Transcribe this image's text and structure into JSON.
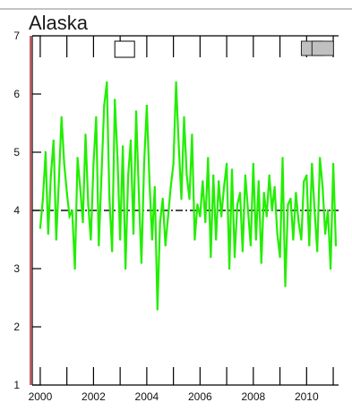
{
  "chart_data": {
    "type": "line",
    "title": "Alaska",
    "xlabel": "",
    "ylabel": "",
    "xlim": [
      1999.7,
      2011.2
    ],
    "ylim": [
      1,
      7
    ],
    "x_ticks": [
      2000,
      2002,
      2004,
      2006,
      2008,
      2010
    ],
    "x_tick_labels": [
      "2000",
      "2002",
      "2004",
      "2006",
      "2008",
      "2010"
    ],
    "y_ticks": [
      1,
      2,
      3,
      4,
      5,
      6,
      7
    ],
    "y_tick_labels": [
      "1",
      "2",
      "3",
      "4",
      "5",
      "6",
      "7"
    ],
    "grid": false,
    "reference_line": {
      "y": 4.0,
      "style": "dash-dot"
    },
    "series": [
      {
        "color": "#22ee00",
        "x": [
          2000.0,
          2000.1,
          2000.2,
          2000.3,
          2000.4,
          2000.5,
          2000.6,
          2000.7,
          2000.8,
          2000.9,
          2001.0,
          2001.1,
          2001.2,
          2001.3,
          2001.4,
          2001.5,
          2001.6,
          2001.7,
          2001.8,
          2001.9,
          2002.0,
          2002.1,
          2002.2,
          2002.3,
          2002.4,
          2002.5,
          2002.6,
          2002.7,
          2002.8,
          2002.9,
          2003.0,
          2003.1,
          2003.2,
          2003.3,
          2003.4,
          2003.5,
          2003.6,
          2003.7,
          2003.8,
          2003.9,
          2004.0,
          2004.1,
          2004.2,
          2004.3,
          2004.4,
          2004.5,
          2004.6,
          2004.7,
          2004.8,
          2004.9,
          2005.0,
          2005.1,
          2005.2,
          2005.3,
          2005.4,
          2005.5,
          2005.6,
          2005.7,
          2005.8,
          2005.9,
          2006.0,
          2006.1,
          2006.2,
          2006.3,
          2006.4,
          2006.5,
          2006.6,
          2006.7,
          2006.8,
          2006.9,
          2007.0,
          2007.1,
          2007.2,
          2007.3,
          2007.4,
          2007.5,
          2007.6,
          2007.7,
          2007.8,
          2007.9,
          2008.0,
          2008.1,
          2008.2,
          2008.3,
          2008.4,
          2008.5,
          2008.6,
          2008.7,
          2008.8,
          2008.9,
          2009.0,
          2009.1,
          2009.2,
          2009.3,
          2009.4,
          2009.5,
          2009.6,
          2009.7,
          2009.8,
          2009.9,
          2010.0,
          2010.1,
          2010.2,
          2010.3,
          2010.4,
          2010.5,
          2010.6,
          2010.7,
          2010.8,
          2010.9,
          2011.0,
          2011.1
        ],
        "y": [
          3.7,
          4.2,
          5.0,
          3.6,
          4.6,
          5.2,
          3.5,
          4.5,
          5.6,
          4.8,
          4.3,
          3.9,
          4.0,
          3.0,
          4.9,
          4.4,
          3.8,
          5.3,
          4.1,
          3.5,
          4.8,
          5.6,
          3.4,
          4.6,
          5.8,
          6.2,
          4.2,
          3.3,
          5.9,
          4.9,
          3.5,
          5.1,
          3.0,
          4.6,
          5.2,
          3.6,
          5.7,
          4.3,
          3.1,
          4.8,
          5.8,
          4.5,
          3.5,
          4.4,
          2.3,
          3.8,
          4.2,
          3.4,
          3.9,
          4.4,
          4.8,
          6.2,
          5.1,
          4.2,
          5.6,
          4.6,
          4.2,
          5.3,
          3.5,
          4.1,
          3.9,
          4.5,
          3.8,
          4.9,
          3.2,
          4.6,
          3.5,
          4.5,
          3.9,
          4.4,
          4.8,
          3.0,
          4.7,
          3.2,
          4.1,
          4.3,
          3.3,
          4.6,
          4.0,
          3.4,
          4.8,
          3.5,
          4.5,
          3.1,
          4.3,
          3.9,
          4.6,
          4.0,
          4.4,
          3.6,
          3.2,
          4.9,
          2.7,
          4.1,
          4.2,
          3.5,
          4.3,
          3.8,
          3.5,
          4.5,
          4.6,
          3.4,
          4.8,
          4.0,
          3.3,
          4.9,
          4.4,
          3.6,
          4.0,
          3.0,
          4.8,
          3.4
        ]
      }
    ]
  },
  "colors": {
    "series": "#22ee00",
    "axis": "#000000",
    "reference": "#111111",
    "left_axis_accent": "#c0202a",
    "indicator_fill": "#c0c0c0"
  },
  "indicators": {
    "hollow_box": "empty box marker",
    "filled_boxes": "grey box markers"
  }
}
